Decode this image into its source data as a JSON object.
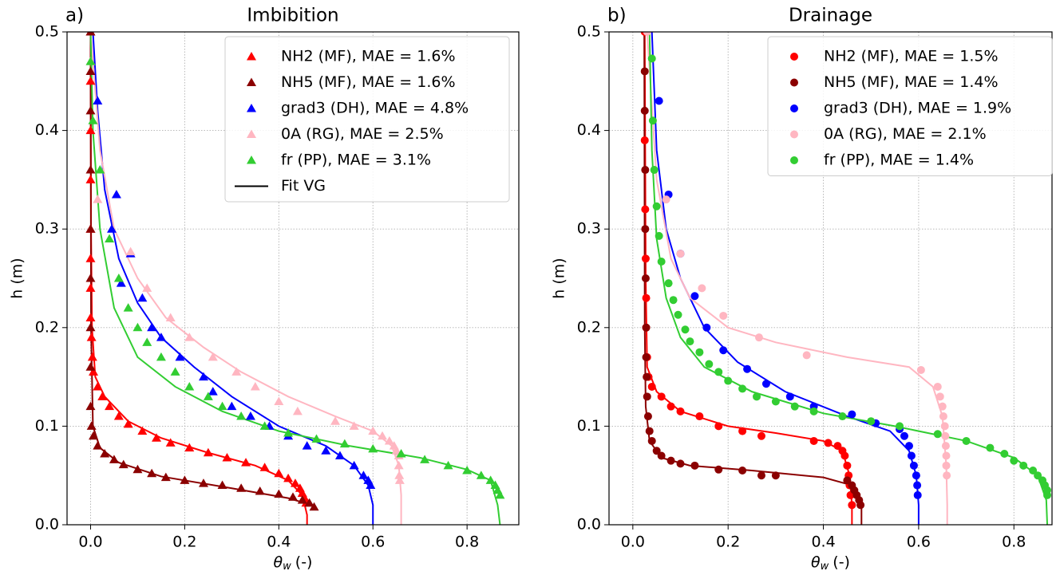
{
  "chart_data": [
    {
      "type": "scatter",
      "panel_label": "a)",
      "title": "Imbibition",
      "x_label": {
        "symbol": "θ",
        "subscript": "w",
        "unit": "(-)"
      },
      "y_label": "h (m)",
      "xlim": [
        -0.05,
        0.91
      ],
      "ylim": [
        0,
        0.5
      ],
      "xticks": [
        {
          "value": 0,
          "label": "0.0"
        },
        0.2,
        0.4,
        0.6,
        0.8
      ],
      "yticks": [
        {
          "value": 0,
          "label": "0.0"
        },
        0.1,
        0.2,
        0.3,
        0.4,
        0.5
      ],
      "grid": true,
      "legend": "upper right",
      "marker": "triangle",
      "series": [
        {
          "name": "NH2 (MF), MAE = 1.6%",
          "color": "#ff0000",
          "x": [
            0,
            0,
            0,
            0,
            0,
            0,
            0,
            0,
            0.002,
            0.004,
            0.006,
            0.015,
            0.025,
            0.04,
            0.06,
            0.08,
            0.11,
            0.14,
            0.17,
            0.21,
            0.25,
            0.29,
            0.33,
            0.37,
            0.4,
            0.42,
            0.435,
            0.445,
            0.45,
            0.455,
            0.458
          ],
          "y": [
            0.5,
            0.45,
            0.4,
            0.35,
            0.3,
            0.27,
            0.24,
            0.21,
            0.19,
            0.17,
            0.155,
            0.14,
            0.13,
            0.12,
            0.11,
            0.102,
            0.095,
            0.088,
            0.083,
            0.078,
            0.073,
            0.068,
            0.063,
            0.058,
            0.052,
            0.047,
            0.042,
            0.037,
            0.032,
            0.027,
            0.022
          ]
        },
        {
          "name": "NH5 (MF), MAE = 1.6%",
          "color": "#8b0000",
          "x": [
            0,
            0,
            0,
            0,
            0,
            0,
            0,
            0,
            0,
            0.002,
            0.006,
            0.015,
            0.03,
            0.05,
            0.07,
            0.1,
            0.13,
            0.16,
            0.2,
            0.24,
            0.28,
            0.32,
            0.36,
            0.4,
            0.43,
            0.45,
            0.465,
            0.475
          ],
          "y": [
            0.5,
            0.46,
            0.42,
            0.36,
            0.3,
            0.25,
            0.2,
            0.16,
            0.12,
            0.1,
            0.09,
            0.08,
            0.072,
            0.066,
            0.061,
            0.056,
            0.052,
            0.048,
            0.045,
            0.042,
            0.04,
            0.037,
            0.034,
            0.031,
            0.028,
            0.025,
            0.022,
            0.018
          ]
        },
        {
          "name": "grad3 (DH), MAE = 4.8%",
          "color": "#0000ff",
          "x": [
            0.015,
            0.055,
            0.045,
            0.085,
            0.065,
            0.11,
            0.13,
            0.15,
            0.19,
            0.24,
            0.26,
            0.3,
            0.34,
            0.38,
            0.42,
            0.46,
            0.5,
            0.53,
            0.56,
            0.58,
            0.59,
            0.595
          ],
          "y": [
            0.43,
            0.335,
            0.3,
            0.275,
            0.245,
            0.23,
            0.2,
            0.19,
            0.17,
            0.15,
            0.135,
            0.12,
            0.11,
            0.1,
            0.09,
            0.08,
            0.075,
            0.07,
            0.06,
            0.05,
            0.045,
            0.04
          ]
        },
        {
          "name": "0A (RG), MAE = 2.5%",
          "color": "#ffb6c1",
          "x": [
            0,
            0.015,
            0.085,
            0.12,
            0.17,
            0.21,
            0.26,
            0.31,
            0.35,
            0.4,
            0.44,
            0.52,
            0.56,
            0.6,
            0.62,
            0.635,
            0.645,
            0.65,
            0.655,
            0.655,
            0.656,
            0.657
          ],
          "y": [
            0.47,
            0.33,
            0.277,
            0.24,
            0.21,
            0.19,
            0.17,
            0.155,
            0.14,
            0.125,
            0.115,
            0.105,
            0.1,
            0.095,
            0.09,
            0.085,
            0.08,
            0.075,
            0.07,
            0.06,
            0.05,
            0.045
          ]
        },
        {
          "name": "fr (PP), MAE = 3.1%",
          "color": "#32cd32",
          "x": [
            0,
            0.005,
            0.02,
            0.04,
            0.06,
            0.08,
            0.1,
            0.12,
            0.15,
            0.18,
            0.21,
            0.25,
            0.28,
            0.32,
            0.37,
            0.42,
            0.48,
            0.54,
            0.6,
            0.66,
            0.71,
            0.76,
            0.8,
            0.83,
            0.85,
            0.86,
            0.865,
            0.87
          ],
          "y": [
            0.47,
            0.41,
            0.36,
            0.29,
            0.25,
            0.22,
            0.2,
            0.185,
            0.17,
            0.155,
            0.14,
            0.13,
            0.12,
            0.11,
            0.1,
            0.093,
            0.087,
            0.082,
            0.077,
            0.072,
            0.066,
            0.06,
            0.055,
            0.05,
            0.045,
            0.04,
            0.035,
            0.03
          ]
        }
      ],
      "fit_legend": "Fit VG",
      "fit_legend_color": "#000000",
      "fit_lines": [
        {
          "color": "#ff0000",
          "x": [
            0,
            0.001,
            0.003,
            0.01,
            0.03,
            0.08,
            0.15,
            0.25,
            0.35,
            0.42,
            0.45,
            0.46,
            0.46
          ],
          "y": [
            0.5,
            0.3,
            0.2,
            0.15,
            0.13,
            0.105,
            0.088,
            0.073,
            0.06,
            0.045,
            0.03,
            0.01,
            0
          ]
        },
        {
          "color": "#8b0000",
          "x": [
            0,
            0.001,
            0.005,
            0.02,
            0.06,
            0.15,
            0.3,
            0.42,
            0.47,
            0.48
          ],
          "y": [
            0.5,
            0.2,
            0.1,
            0.078,
            0.063,
            0.049,
            0.037,
            0.027,
            0.02,
            0.015
          ]
        },
        {
          "color": "#0000ff",
          "x": [
            0.005,
            0.015,
            0.03,
            0.06,
            0.1,
            0.15,
            0.22,
            0.3,
            0.4,
            0.5,
            0.56,
            0.59,
            0.6,
            0.6
          ],
          "y": [
            0.5,
            0.42,
            0.34,
            0.27,
            0.225,
            0.19,
            0.16,
            0.13,
            0.1,
            0.08,
            0.06,
            0.04,
            0.02,
            0
          ]
        },
        {
          "color": "#ffb6c1",
          "x": [
            0,
            0.02,
            0.05,
            0.1,
            0.16,
            0.24,
            0.32,
            0.42,
            0.52,
            0.6,
            0.64,
            0.655,
            0.66,
            0.66
          ],
          "y": [
            0.5,
            0.38,
            0.3,
            0.25,
            0.21,
            0.18,
            0.155,
            0.13,
            0.11,
            0.095,
            0.08,
            0.06,
            0.03,
            0
          ]
        },
        {
          "color": "#32cd32",
          "x": [
            0,
            0.005,
            0.02,
            0.05,
            0.1,
            0.18,
            0.28,
            0.4,
            0.55,
            0.7,
            0.8,
            0.85,
            0.865,
            0.87
          ],
          "y": [
            0.5,
            0.4,
            0.3,
            0.22,
            0.17,
            0.14,
            0.115,
            0.095,
            0.08,
            0.068,
            0.056,
            0.045,
            0.02,
            0
          ]
        }
      ]
    },
    {
      "type": "scatter",
      "panel_label": "b)",
      "title": "Drainage",
      "x_label": {
        "symbol": "θ",
        "subscript": "w",
        "unit": "(-)"
      },
      "y_label": "h (m)",
      "xlim": [
        -0.05,
        0.88
      ],
      "ylim": [
        0,
        0.5
      ],
      "xticks": [
        {
          "value": 0,
          "label": "0.0"
        },
        0.2,
        0.4,
        0.6,
        0.8
      ],
      "yticks": [
        {
          "value": 0,
          "label": "0.0"
        },
        0.1,
        0.2,
        0.3,
        0.4,
        0.5
      ],
      "grid": true,
      "legend": "upper right",
      "marker": "circle",
      "series": [
        {
          "name": "NH2 (MF), MAE = 1.5%",
          "color": "#ff0000",
          "x": [
            0.025,
            0.025,
            0.026,
            0.027,
            0.028,
            0.028,
            0.03,
            0.033,
            0.04,
            0.06,
            0.08,
            0.1,
            0.14,
            0.18,
            0.23,
            0.27,
            0.38,
            0.41,
            0.43,
            0.44,
            0.445,
            0.45,
            0.453,
            0.455,
            0.457,
            0.46
          ],
          "y": [
            0.5,
            0.39,
            0.32,
            0.27,
            0.23,
            0.2,
            0.17,
            0.15,
            0.14,
            0.13,
            0.12,
            0.115,
            0.11,
            0.1,
            0.095,
            0.09,
            0.085,
            0.083,
            0.08,
            0.075,
            0.07,
            0.06,
            0.05,
            0.04,
            0.03,
            0.02
          ]
        },
        {
          "name": "NH5 (MF), MAE = 1.4%",
          "color": "#8b0000",
          "x": [
            0.025,
            0.025,
            0.026,
            0.026,
            0.027,
            0.028,
            0.028,
            0.029,
            0.03,
            0.032,
            0.035,
            0.04,
            0.05,
            0.06,
            0.08,
            0.1,
            0.13,
            0.18,
            0.23,
            0.27,
            0.3,
            0.45,
            0.46,
            0.465,
            0.47,
            0.475,
            0.478
          ],
          "y": [
            0.46,
            0.42,
            0.36,
            0.3,
            0.25,
            0.2,
            0.17,
            0.15,
            0.13,
            0.11,
            0.095,
            0.085,
            0.075,
            0.07,
            0.065,
            0.062,
            0.06,
            0.056,
            0.055,
            0.05,
            0.05,
            0.045,
            0.04,
            0.035,
            0.03,
            0.025,
            0.02
          ]
        },
        {
          "name": "grad3 (DH), MAE = 1.9%",
          "color": "#0000ff",
          "x": [
            0.055,
            0.075,
            0.1,
            0.13,
            0.155,
            0.19,
            0.24,
            0.28,
            0.33,
            0.38,
            0.46,
            0.51,
            0.56,
            0.57,
            0.58,
            0.585,
            0.59,
            0.595,
            0.597,
            0.598
          ],
          "y": [
            0.43,
            0.335,
            0.275,
            0.232,
            0.2,
            0.177,
            0.158,
            0.143,
            0.13,
            0.12,
            0.112,
            0.103,
            0.097,
            0.09,
            0.08,
            0.07,
            0.06,
            0.05,
            0.04,
            0.03
          ]
        },
        {
          "name": "0A (RG), MAE = 2.1%",
          "color": "#ffb6c1",
          "x": [
            0.03,
            0.07,
            0.1,
            0.145,
            0.19,
            0.265,
            0.365,
            0.605,
            0.64,
            0.645,
            0.65,
            0.652,
            0.655,
            0.656,
            0.657,
            0.658,
            0.658,
            0.659
          ],
          "y": [
            0.5,
            0.33,
            0.275,
            0.24,
            0.212,
            0.19,
            0.172,
            0.157,
            0.14,
            0.13,
            0.12,
            0.11,
            0.1,
            0.09,
            0.08,
            0.07,
            0.06,
            0.05
          ]
        },
        {
          "name": "fr (PP), MAE = 1.4%",
          "color": "#32cd32",
          "x": [
            0.04,
            0.042,
            0.045,
            0.05,
            0.055,
            0.06,
            0.075,
            0.085,
            0.095,
            0.11,
            0.12,
            0.14,
            0.16,
            0.18,
            0.2,
            0.23,
            0.26,
            0.3,
            0.34,
            0.38,
            0.44,
            0.5,
            0.56,
            0.64,
            0.7,
            0.75,
            0.78,
            0.8,
            0.82,
            0.84,
            0.85,
            0.86,
            0.865,
            0.87,
            0.87
          ],
          "y": [
            0.473,
            0.41,
            0.36,
            0.323,
            0.293,
            0.267,
            0.245,
            0.228,
            0.213,
            0.198,
            0.186,
            0.175,
            0.163,
            0.155,
            0.146,
            0.138,
            0.13,
            0.125,
            0.12,
            0.115,
            0.11,
            0.105,
            0.1,
            0.092,
            0.085,
            0.078,
            0.072,
            0.065,
            0.06,
            0.055,
            0.05,
            0.045,
            0.04,
            0.035,
            0.03
          ]
        }
      ],
      "fit_lines": [
        {
          "color": "#ff0000",
          "x": [
            0.025,
            0.027,
            0.03,
            0.05,
            0.1,
            0.2,
            0.3,
            0.4,
            0.44,
            0.455,
            0.46,
            0.46
          ],
          "y": [
            0.5,
            0.25,
            0.16,
            0.135,
            0.115,
            0.1,
            0.093,
            0.085,
            0.075,
            0.05,
            0.02,
            0
          ]
        },
        {
          "color": "#8b0000",
          "x": [
            0.024,
            0.025,
            0.027,
            0.035,
            0.06,
            0.12,
            0.25,
            0.4,
            0.46,
            0.48,
            0.48
          ],
          "y": [
            0.5,
            0.2,
            0.12,
            0.085,
            0.068,
            0.06,
            0.055,
            0.048,
            0.04,
            0.02,
            0
          ]
        },
        {
          "color": "#0000ff",
          "x": [
            0.04,
            0.05,
            0.07,
            0.1,
            0.15,
            0.22,
            0.32,
            0.45,
            0.54,
            0.58,
            0.595,
            0.6,
            0.6
          ],
          "y": [
            0.5,
            0.38,
            0.3,
            0.25,
            0.2,
            0.165,
            0.135,
            0.11,
            0.095,
            0.075,
            0.05,
            0.02,
            0
          ]
        },
        {
          "color": "#ffb6c1",
          "x": [
            0.03,
            0.05,
            0.08,
            0.12,
            0.2,
            0.3,
            0.45,
            0.58,
            0.63,
            0.65,
            0.658,
            0.66,
            0.66
          ],
          "y": [
            0.5,
            0.35,
            0.27,
            0.23,
            0.2,
            0.185,
            0.17,
            0.16,
            0.14,
            0.11,
            0.06,
            0.02,
            0
          ]
        },
        {
          "color": "#32cd32",
          "x": [
            0.035,
            0.04,
            0.05,
            0.07,
            0.1,
            0.15,
            0.25,
            0.4,
            0.55,
            0.7,
            0.8,
            0.85,
            0.868,
            0.87
          ],
          "y": [
            0.5,
            0.38,
            0.29,
            0.23,
            0.19,
            0.16,
            0.135,
            0.113,
            0.1,
            0.085,
            0.068,
            0.05,
            0.025,
            0
          ]
        }
      ]
    }
  ]
}
